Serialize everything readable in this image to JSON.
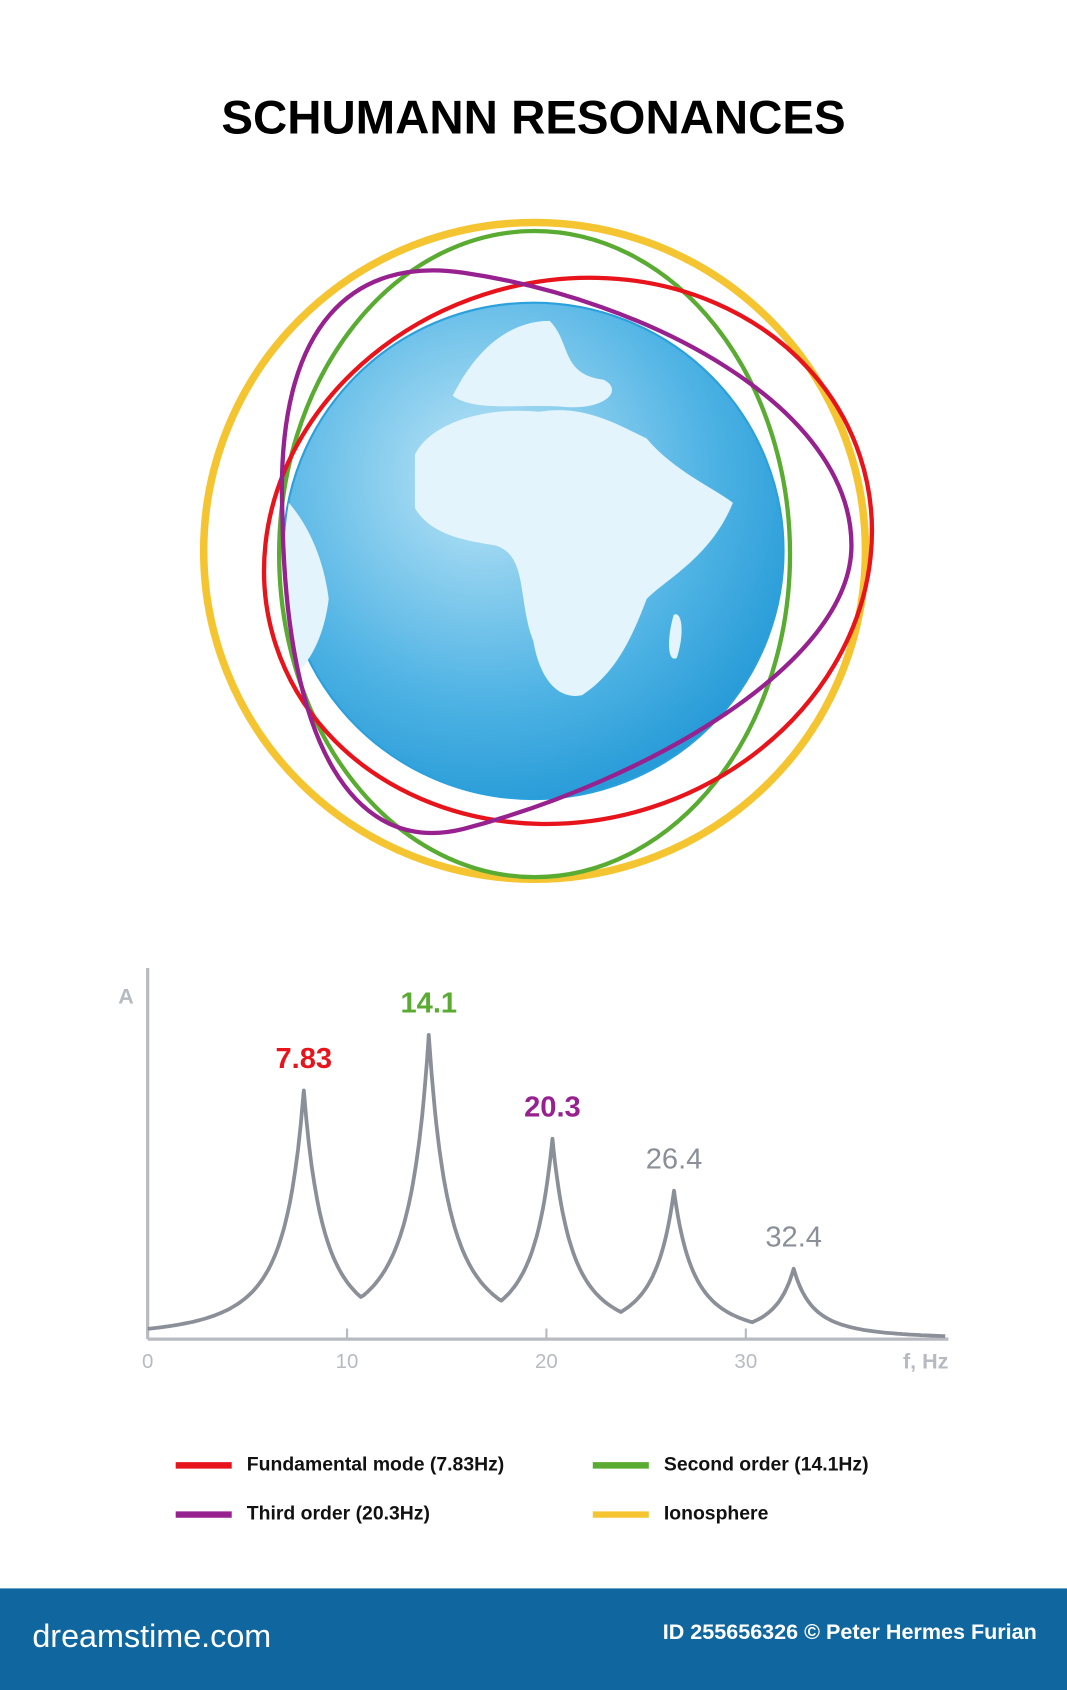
{
  "title": "SCHUMANN RESONANCES",
  "chart_data": {
    "type": "line",
    "y_axis_label": "A",
    "x_axis_label": "f, Hz",
    "x": [
      7.83,
      14.1,
      20.3,
      26.4,
      32.4
    ],
    "values": [
      67,
      82,
      54,
      40,
      19
    ],
    "x_labels": [
      "7.83",
      "14.1",
      "20.3",
      "26.4",
      "32.4"
    ],
    "label_colors": [
      "#e8141c",
      "#5aab32",
      "#96218f",
      "#8a8f98",
      "#8a8f98"
    ],
    "xlim": [
      0,
      40
    ],
    "xticks": [
      0,
      10,
      20,
      30
    ],
    "ylim": [
      0,
      100
    ],
    "color": "#8a8f98"
  },
  "legend": [
    {
      "label": "Fundamental mode (7.83Hz)",
      "color": "#e8141c"
    },
    {
      "label": "Second order (14.1Hz)",
      "color": "#5aab32"
    },
    {
      "label": "Third order (20.3Hz)",
      "color": "#96218f"
    },
    {
      "label": "Ionosphere",
      "color": "#f5c531"
    }
  ],
  "footer": {
    "site": "dreamstime.com",
    "credit": "ID 255656326 © Peter Hermes Furian"
  }
}
